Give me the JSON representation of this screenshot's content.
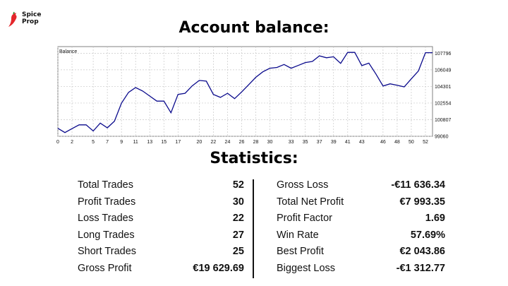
{
  "brand": {
    "name_line1": "Spice",
    "name_line2": "Prop",
    "logo_color": "#e4262b"
  },
  "headings": {
    "balance": "Account balance:",
    "statistics": "Statistics:"
  },
  "chart_data": {
    "type": "line",
    "title": "Balance",
    "line_color": "#0a0a8c",
    "grid": true,
    "x_ticks": [
      0,
      2,
      5,
      7,
      9,
      11,
      13,
      15,
      17,
      20,
      22,
      24,
      26,
      28,
      30,
      33,
      35,
      37,
      39,
      41,
      43,
      46,
      48,
      50,
      52
    ],
    "y_ticks": [
      99060,
      100807,
      102554,
      104301,
      106049,
      107796
    ],
    "xlim": [
      0,
      53
    ],
    "ylim": [
      99060,
      108490
    ],
    "x": [
      0,
      1,
      2,
      3,
      4,
      5,
      6,
      7,
      8,
      9,
      10,
      11,
      12,
      13,
      14,
      15,
      16,
      17,
      18,
      19,
      20,
      21,
      22,
      23,
      24,
      25,
      26,
      27,
      28,
      29,
      30,
      31,
      32,
      33,
      34,
      35,
      36,
      37,
      38,
      39,
      40,
      41,
      42,
      43,
      44,
      45,
      46,
      47,
      48,
      49,
      50,
      51,
      52,
      53
    ],
    "values": [
      99900,
      99450,
      99860,
      100260,
      100260,
      99620,
      100450,
      99950,
      100650,
      102550,
      103680,
      104180,
      103820,
      103290,
      102760,
      102760,
      101530,
      103460,
      103580,
      104360,
      104930,
      104860,
      103460,
      103150,
      103580,
      103020,
      103720,
      104490,
      105260,
      105840,
      106220,
      106300,
      106610,
      106220,
      106510,
      106810,
      106930,
      107520,
      107320,
      107420,
      106730,
      107880,
      107880,
      106490,
      106750,
      105610,
      104350,
      104580,
      104420,
      104260,
      105100,
      105930,
      107850,
      107850
    ]
  },
  "stats": {
    "left": [
      {
        "label": "Total Trades",
        "value": "52"
      },
      {
        "label": "Profit Trades",
        "value": "30"
      },
      {
        "label": "Loss Trades",
        "value": "22"
      },
      {
        "label": "Long Trades",
        "value": "27"
      },
      {
        "label": "Short Trades",
        "value": "25"
      },
      {
        "label": "Gross Profit",
        "value": "€19 629.69"
      }
    ],
    "right": [
      {
        "label": "Gross Loss",
        "value": "-€11 636.34"
      },
      {
        "label": "Total Net Profit",
        "value": "€7 993.35"
      },
      {
        "label": "Profit Factor",
        "value": "1.69"
      },
      {
        "label": "Win Rate",
        "value": "57.69%"
      },
      {
        "label": "Best Profit",
        "value": "€2 043.86"
      },
      {
        "label": "Biggest Loss",
        "value": "-€1 312.77"
      }
    ]
  }
}
